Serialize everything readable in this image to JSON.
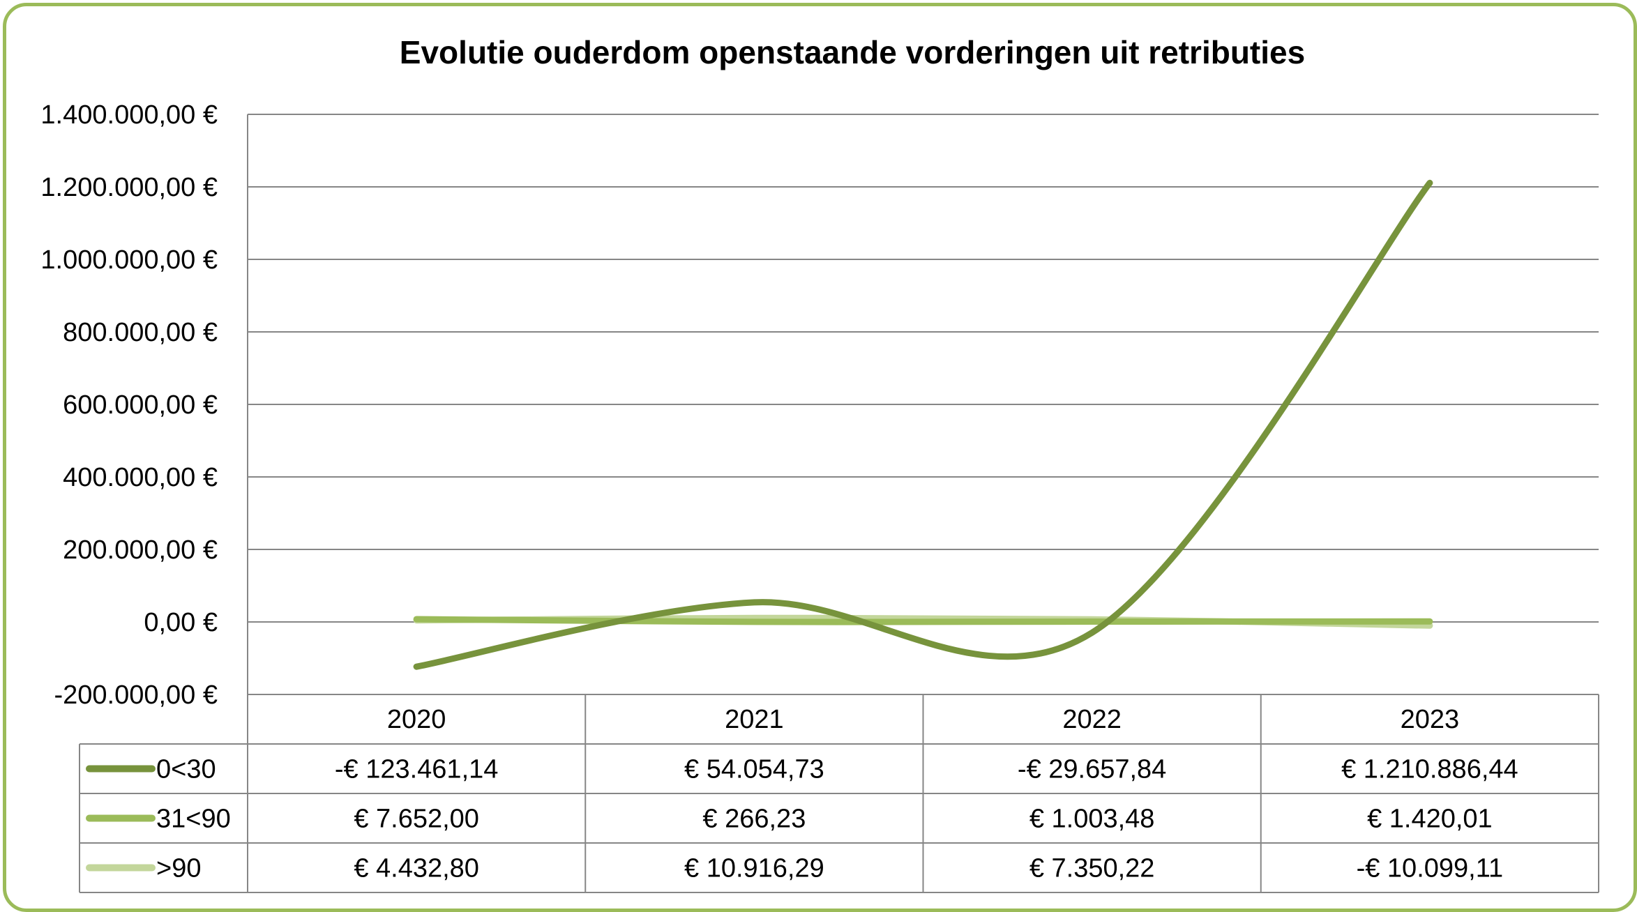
{
  "colors": {
    "frame": "#9bbb59",
    "grid": "#868686",
    "series": [
      "#77933c",
      "#9bbb59",
      "#c3d69b"
    ]
  },
  "chart_data": {
    "type": "line",
    "title": "Evolutie ouderdom openstaande vorderingen uit retributies",
    "categories": [
      "2020",
      "2021",
      "2022",
      "2023"
    ],
    "ylim": [
      -200000,
      1400000
    ],
    "y_ticks": [
      -200000,
      0,
      200000,
      400000,
      600000,
      800000,
      1000000,
      1200000,
      1400000
    ],
    "y_tick_labels": [
      "-200.000,00 €",
      "0,00 €",
      "200.000,00 €",
      "400.000,00 €",
      "600.000,00 €",
      "800.000,00 €",
      "1.000.000,00 €",
      "1.200.000,00 €",
      "1.400.000,00 €"
    ],
    "grid": true,
    "legend": "data-table-left",
    "smooth": true,
    "series": [
      {
        "name": "0<30",
        "values": [
          -123461.14,
          54054.73,
          -29657.84,
          1210886.44
        ],
        "labels": [
          "-€ 123.461,14",
          "€ 54.054,73",
          "-€ 29.657,84",
          "€ 1.210.886,44"
        ]
      },
      {
        "name": "31<90",
        "values": [
          7652.0,
          266.23,
          1003.48,
          1420.01
        ],
        "labels": [
          "€ 7.652,00",
          "€ 266,23",
          "€ 1.003,48",
          "€ 1.420,01"
        ]
      },
      {
        "name": ">90",
        "values": [
          4432.8,
          10916.29,
          7350.22,
          -10099.11
        ],
        "labels": [
          "€ 4.432,80",
          "€ 10.916,29",
          "€ 7.350,22",
          "-€ 10.099,11"
        ]
      }
    ]
  }
}
